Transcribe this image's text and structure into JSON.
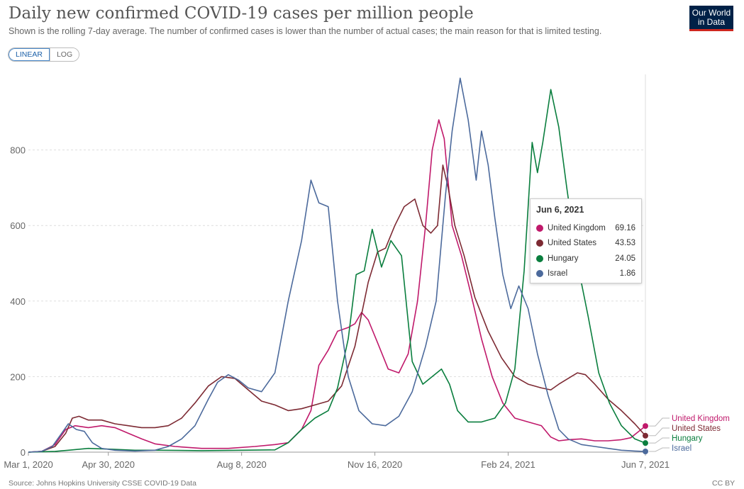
{
  "header": {
    "title": "Daily new confirmed COVID-19 cases per million people",
    "subtitle": "Shown is the rolling 7-day average. The number of confirmed cases is lower than the number of actual cases; the main reason for that is limited testing."
  },
  "logo": {
    "line1": "Our World",
    "line2": "in Data"
  },
  "scale_toggle": {
    "linear_label": "LINEAR",
    "log_label": "LOG",
    "selected": "LINEAR"
  },
  "footer": {
    "source": "Source: Johns Hopkins University CSSE COVID-19 Data",
    "license": "CC BY"
  },
  "tooltip": {
    "date": "Jun 6, 2021",
    "rows": [
      {
        "name": "United Kingdom",
        "value": "69.16",
        "color": "#c0196b"
      },
      {
        "name": "United States",
        "value": "43.53",
        "color": "#7d2a33"
      },
      {
        "name": "Hungary",
        "value": "24.05",
        "color": "#0a7e3e"
      },
      {
        "name": "Israel",
        "value": "1.86",
        "color": "#4c6a9c"
      }
    ]
  },
  "chart_data": {
    "type": "line",
    "x_ticks": [
      "Mar 1, 2020",
      "Apr 30, 2020",
      "Aug 8, 2020",
      "Nov 16, 2020",
      "Feb 24, 2021",
      "Jun 7, 2021"
    ],
    "x_tick_days": [
      0,
      60,
      160,
      260,
      360,
      463
    ],
    "y_ticks": [
      0,
      200,
      400,
      600,
      800
    ],
    "ylim": [
      0,
      1000
    ],
    "xlim_days": [
      0,
      463
    ],
    "grid": "horizontal dashed",
    "series": [
      {
        "name": "United Kingdom",
        "color": "#c0196b",
        "points": [
          [
            0,
            0
          ],
          [
            10,
            2
          ],
          [
            20,
            20
          ],
          [
            28,
            60
          ],
          [
            35,
            70
          ],
          [
            45,
            65
          ],
          [
            55,
            70
          ],
          [
            65,
            65
          ],
          [
            75,
            50
          ],
          [
            85,
            35
          ],
          [
            95,
            22
          ],
          [
            110,
            15
          ],
          [
            130,
            10
          ],
          [
            150,
            10
          ],
          [
            170,
            15
          ],
          [
            185,
            20
          ],
          [
            195,
            25
          ],
          [
            205,
            60
          ],
          [
            212,
            110
          ],
          [
            218,
            230
          ],
          [
            225,
            270
          ],
          [
            232,
            320
          ],
          [
            240,
            330
          ],
          [
            245,
            340
          ],
          [
            250,
            370
          ],
          [
            255,
            350
          ],
          [
            262,
            290
          ],
          [
            270,
            220
          ],
          [
            278,
            210
          ],
          [
            285,
            260
          ],
          [
            292,
            400
          ],
          [
            298,
            600
          ],
          [
            303,
            800
          ],
          [
            308,
            880
          ],
          [
            312,
            830
          ],
          [
            318,
            600
          ],
          [
            325,
            520
          ],
          [
            332,
            420
          ],
          [
            340,
            300
          ],
          [
            348,
            200
          ],
          [
            356,
            130
          ],
          [
            365,
            90
          ],
          [
            375,
            80
          ],
          [
            385,
            70
          ],
          [
            392,
            40
          ],
          [
            398,
            30
          ],
          [
            405,
            33
          ],
          [
            415,
            35
          ],
          [
            425,
            30
          ],
          [
            435,
            30
          ],
          [
            445,
            33
          ],
          [
            452,
            38
          ],
          [
            458,
            55
          ],
          [
            463,
            69.16
          ]
        ]
      },
      {
        "name": "United States",
        "color": "#7d2a33",
        "points": [
          [
            0,
            0
          ],
          [
            10,
            2
          ],
          [
            20,
            15
          ],
          [
            28,
            50
          ],
          [
            33,
            90
          ],
          [
            38,
            95
          ],
          [
            45,
            85
          ],
          [
            55,
            85
          ],
          [
            65,
            75
          ],
          [
            75,
            70
          ],
          [
            85,
            65
          ],
          [
            95,
            65
          ],
          [
            105,
            70
          ],
          [
            115,
            90
          ],
          [
            125,
            130
          ],
          [
            135,
            175
          ],
          [
            145,
            200
          ],
          [
            155,
            195
          ],
          [
            165,
            165
          ],
          [
            175,
            135
          ],
          [
            185,
            125
          ],
          [
            195,
            110
          ],
          [
            205,
            115
          ],
          [
            215,
            125
          ],
          [
            225,
            135
          ],
          [
            235,
            175
          ],
          [
            245,
            280
          ],
          [
            255,
            450
          ],
          [
            262,
            530
          ],
          [
            268,
            540
          ],
          [
            275,
            600
          ],
          [
            282,
            650
          ],
          [
            290,
            670
          ],
          [
            296,
            600
          ],
          [
            302,
            580
          ],
          [
            307,
            600
          ],
          [
            311,
            760
          ],
          [
            315,
            700
          ],
          [
            320,
            600
          ],
          [
            327,
            520
          ],
          [
            335,
            410
          ],
          [
            345,
            320
          ],
          [
            355,
            250
          ],
          [
            365,
            200
          ],
          [
            375,
            180
          ],
          [
            385,
            170
          ],
          [
            392,
            165
          ],
          [
            398,
            180
          ],
          [
            405,
            195
          ],
          [
            412,
            210
          ],
          [
            418,
            205
          ],
          [
            425,
            180
          ],
          [
            435,
            140
          ],
          [
            445,
            110
          ],
          [
            455,
            75
          ],
          [
            463,
            43.53
          ]
        ]
      },
      {
        "name": "Hungary",
        "color": "#0a7e3e",
        "points": [
          [
            0,
            0
          ],
          [
            20,
            2
          ],
          [
            30,
            5
          ],
          [
            45,
            10
          ],
          [
            60,
            8
          ],
          [
            80,
            5
          ],
          [
            100,
            5
          ],
          [
            130,
            4
          ],
          [
            160,
            5
          ],
          [
            185,
            6
          ],
          [
            195,
            25
          ],
          [
            205,
            60
          ],
          [
            215,
            90
          ],
          [
            225,
            110
          ],
          [
            232,
            170
          ],
          [
            240,
            300
          ],
          [
            246,
            470
          ],
          [
            252,
            480
          ],
          [
            258,
            590
          ],
          [
            265,
            490
          ],
          [
            272,
            560
          ],
          [
            280,
            520
          ],
          [
            288,
            240
          ],
          [
            296,
            180
          ],
          [
            303,
            200
          ],
          [
            310,
            220
          ],
          [
            316,
            180
          ],
          [
            322,
            110
          ],
          [
            330,
            80
          ],
          [
            340,
            80
          ],
          [
            350,
            90
          ],
          [
            358,
            130
          ],
          [
            365,
            220
          ],
          [
            372,
            480
          ],
          [
            378,
            820
          ],
          [
            382,
            740
          ],
          [
            386,
            820
          ],
          [
            392,
            960
          ],
          [
            398,
            860
          ],
          [
            404,
            700
          ],
          [
            412,
            500
          ],
          [
            420,
            360
          ],
          [
            428,
            210
          ],
          [
            436,
            130
          ],
          [
            445,
            70
          ],
          [
            455,
            35
          ],
          [
            463,
            24.05
          ]
        ]
      },
      {
        "name": "Israel",
        "color": "#4c6a9c",
        "points": [
          [
            0,
            0
          ],
          [
            10,
            2
          ],
          [
            18,
            15
          ],
          [
            25,
            50
          ],
          [
            30,
            75
          ],
          [
            36,
            60
          ],
          [
            42,
            55
          ],
          [
            48,
            25
          ],
          [
            55,
            10
          ],
          [
            65,
            5
          ],
          [
            80,
            3
          ],
          [
            95,
            5
          ],
          [
            105,
            15
          ],
          [
            115,
            35
          ],
          [
            125,
            70
          ],
          [
            135,
            140
          ],
          [
            142,
            185
          ],
          [
            150,
            205
          ],
          [
            158,
            190
          ],
          [
            165,
            170
          ],
          [
            175,
            160
          ],
          [
            185,
            210
          ],
          [
            195,
            400
          ],
          [
            205,
            560
          ],
          [
            212,
            720
          ],
          [
            218,
            660
          ],
          [
            225,
            650
          ],
          [
            232,
            400
          ],
          [
            240,
            200
          ],
          [
            248,
            110
          ],
          [
            258,
            75
          ],
          [
            268,
            70
          ],
          [
            278,
            95
          ],
          [
            288,
            160
          ],
          [
            298,
            280
          ],
          [
            306,
            400
          ],
          [
            313,
            680
          ],
          [
            318,
            850
          ],
          [
            324,
            990
          ],
          [
            330,
            880
          ],
          [
            336,
            720
          ],
          [
            340,
            850
          ],
          [
            345,
            760
          ],
          [
            350,
            620
          ],
          [
            356,
            470
          ],
          [
            362,
            380
          ],
          [
            368,
            440
          ],
          [
            375,
            380
          ],
          [
            382,
            260
          ],
          [
            390,
            150
          ],
          [
            398,
            60
          ],
          [
            405,
            35
          ],
          [
            415,
            20
          ],
          [
            425,
            15
          ],
          [
            435,
            10
          ],
          [
            445,
            5
          ],
          [
            455,
            3
          ],
          [
            463,
            1.86
          ]
        ]
      }
    ],
    "end_labels": [
      "United Kingdom",
      "United States",
      "Hungary",
      "Israel"
    ]
  }
}
